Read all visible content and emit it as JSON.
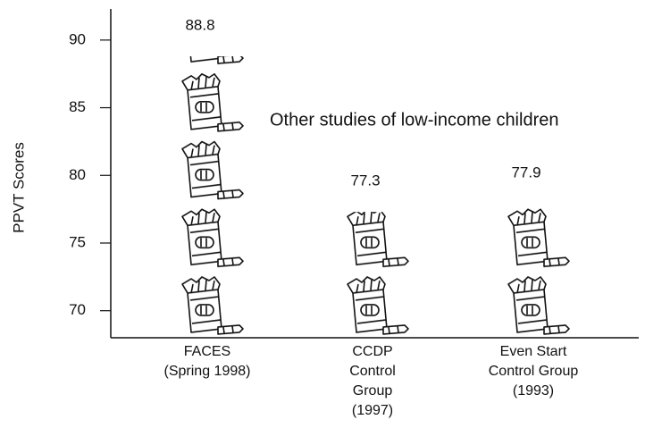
{
  "chart_data": {
    "type": "bar",
    "y_label": "PPVT Scores",
    "annotation": "Other studies of low-income children",
    "categories": [
      "FACES\n(Spring 1998)",
      "CCDP\nControl\nGroup\n(1997)",
      "Even Start\nControl Group\n(1993)"
    ],
    "values": [
      88.8,
      77.3,
      77.9
    ],
    "color": "#000000",
    "ylim": [
      68,
      92.3
    ],
    "yticks": [
      70,
      75,
      80,
      85,
      90
    ],
    "grid": false
  }
}
